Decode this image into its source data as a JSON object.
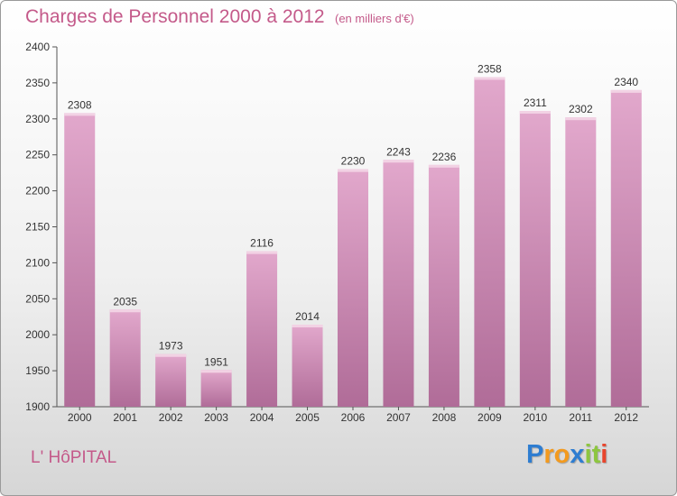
{
  "chart_data": {
    "type": "bar",
    "title": "Charges de Personnel 2000 à 2012",
    "subtitle": "(en milliers d'€)",
    "categories": [
      "2000",
      "2001",
      "2002",
      "2003",
      "2004",
      "2005",
      "2006",
      "2007",
      "2008",
      "2009",
      "2010",
      "2011",
      "2012"
    ],
    "values": [
      2308,
      2035,
      1973,
      1951,
      2116,
      2014,
      2230,
      2243,
      2236,
      2358,
      2311,
      2302,
      2340
    ],
    "ylim": [
      1900,
      2400
    ],
    "yticks": [
      1900,
      1950,
      2000,
      2050,
      2100,
      2150,
      2200,
      2250,
      2300,
      2350,
      2400
    ],
    "xlabel": "",
    "ylabel": "",
    "grid": false,
    "colors": {
      "bar_top": "#e2a8cc",
      "bar_bottom": "#b06c98",
      "text_accent": "#c45a8a"
    }
  },
  "footer": {
    "commune": "L' HôPITAL",
    "logo_letters": [
      {
        "ch": "P",
        "color": "#2e7dd1"
      },
      {
        "ch": "r",
        "color": "#f39a1e"
      },
      {
        "ch": "o",
        "color": "#f39a1e"
      },
      {
        "ch": "x",
        "color": "#2e7dd1"
      },
      {
        "ch": "i",
        "color": "#8dc63f"
      },
      {
        "ch": "t",
        "color": "#8dc63f"
      },
      {
        "ch": "i",
        "color": "#e8442c"
      }
    ]
  }
}
